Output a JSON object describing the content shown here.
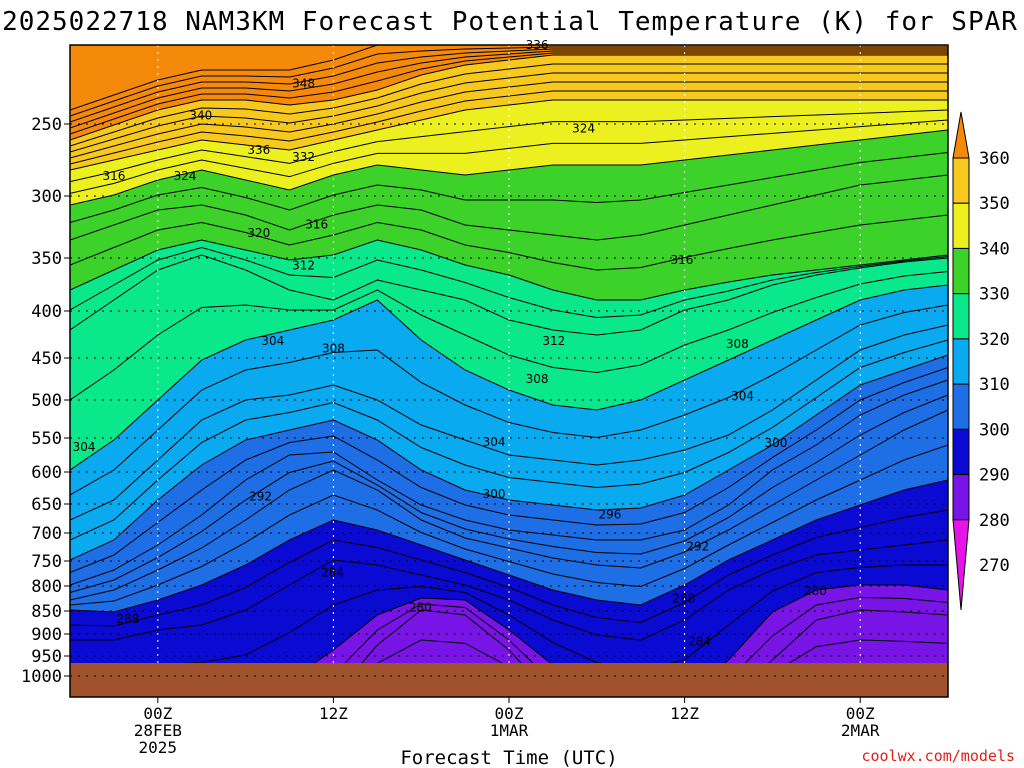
{
  "chart_data": {
    "type": "heatmap",
    "title": "2025022718 NAM3KM Forecast Potential Temperature (K) for SPAR",
    "xlabel": "Forecast Time (UTC)",
    "ylabel": "",
    "credit": "coolwx.com/models",
    "y_ticks": [
      "250",
      "300",
      "350",
      "400",
      "450",
      "500",
      "550",
      "600",
      "650",
      "700",
      "750",
      "800",
      "850",
      "900",
      "950",
      "1000"
    ],
    "x_ticks": [
      {
        "lines": [
          "00Z",
          "28FEB",
          "2025"
        ]
      },
      {
        "lines": [
          "12Z"
        ]
      },
      {
        "lines": [
          "00Z",
          "1MAR"
        ]
      },
      {
        "lines": [
          "12Z"
        ]
      },
      {
        "lines": [
          "00Z",
          "2MAR"
        ]
      }
    ],
    "colorbar": {
      "labels": [
        "360",
        "350",
        "340",
        "330",
        "320",
        "310",
        "300",
        "290",
        "280",
        "270"
      ],
      "bands": [
        {
          "min": 350,
          "max": 360,
          "color": "#f58a0a"
        },
        {
          "min": 340,
          "max": 350,
          "color": "#f7c81e"
        },
        {
          "min": 330,
          "max": 340,
          "color": "#ecf01e"
        },
        {
          "min": 320,
          "max": 330,
          "color": "#3cd22a"
        },
        {
          "min": 310,
          "max": 320,
          "color": "#0ae88c"
        },
        {
          "min": 300,
          "max": 310,
          "color": "#0aaaf0"
        },
        {
          "min": 290,
          "max": 300,
          "color": "#1e6ee6"
        },
        {
          "min": 280,
          "max": 290,
          "color": "#0a0ad2"
        },
        {
          "min": 270,
          "max": 280,
          "color": "#7814e6"
        },
        {
          "min": 260,
          "max": 270,
          "color": "#e614e6"
        }
      ]
    },
    "contour_labels": [
      {
        "text": "336",
        "x": 0.532,
        "p": 213
      },
      {
        "text": "348",
        "x": 0.266,
        "p": 231
      },
      {
        "text": "340",
        "x": 0.149,
        "p": 246
      },
      {
        "text": "324",
        "x": 0.585,
        "p": 253
      },
      {
        "text": "336",
        "x": 0.215,
        "p": 268
      },
      {
        "text": "332",
        "x": 0.266,
        "p": 273
      },
      {
        "text": "316",
        "x": 0.05,
        "p": 286
      },
      {
        "text": "324",
        "x": 0.131,
        "p": 286
      },
      {
        "text": "316",
        "x": 0.281,
        "p": 323
      },
      {
        "text": "320",
        "x": 0.215,
        "p": 330
      },
      {
        "text": "316",
        "x": 0.697,
        "p": 352
      },
      {
        "text": "312",
        "x": 0.266,
        "p": 357
      },
      {
        "text": "312",
        "x": 0.551,
        "p": 432
      },
      {
        "text": "304",
        "x": 0.231,
        "p": 432
      },
      {
        "text": "308",
        "x": 0.76,
        "p": 435
      },
      {
        "text": "308",
        "x": 0.3,
        "p": 440
      },
      {
        "text": "308",
        "x": 0.532,
        "p": 475
      },
      {
        "text": "304",
        "x": 0.766,
        "p": 495
      },
      {
        "text": "304",
        "x": 0.483,
        "p": 556
      },
      {
        "text": "300",
        "x": 0.804,
        "p": 557
      },
      {
        "text": "304",
        "x": 0.016,
        "p": 563
      },
      {
        "text": "292",
        "x": 0.217,
        "p": 638
      },
      {
        "text": "300",
        "x": 0.483,
        "p": 634
      },
      {
        "text": "296",
        "x": 0.615,
        "p": 668
      },
      {
        "text": "292",
        "x": 0.715,
        "p": 724
      },
      {
        "text": "284",
        "x": 0.299,
        "p": 773
      },
      {
        "text": "280",
        "x": 0.849,
        "p": 810
      },
      {
        "text": "288",
        "x": 0.699,
        "p": 825
      },
      {
        "text": "280",
        "x": 0.399,
        "p": 843
      },
      {
        "text": "288",
        "x": 0.066,
        "p": 867
      },
      {
        "text": "284",
        "x": 0.717,
        "p": 917
      }
    ],
    "colors": {
      "ground": "#a0522d",
      "grid": "#000000",
      "contour": "#000000"
    }
  }
}
